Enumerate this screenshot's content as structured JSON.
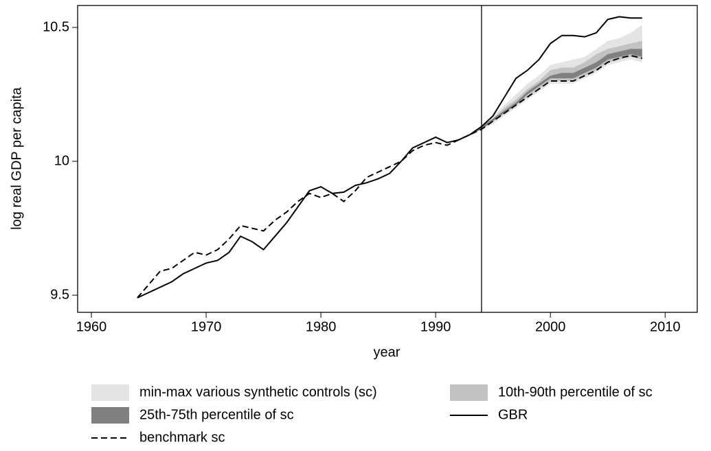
{
  "chart_data": {
    "type": "line",
    "x_label": "year",
    "y_label": "log real GDP per capita",
    "xlim": [
      1958.8,
      2012.8
    ],
    "xticks": [
      1960,
      1970,
      1980,
      1990,
      2000,
      2010
    ],
    "ylim": [
      9.436,
      10.582
    ],
    "yticks": [
      9.5,
      10,
      10.5
    ],
    "vline": 1994,
    "x": [
      1964,
      1965,
      1966,
      1967,
      1968,
      1969,
      1970,
      1971,
      1972,
      1973,
      1974,
      1975,
      1976,
      1977,
      1978,
      1979,
      1980,
      1981,
      1982,
      1983,
      1984,
      1985,
      1986,
      1987,
      1988,
      1989,
      1990,
      1991,
      1992,
      1993,
      1994,
      1995,
      1996,
      1997,
      1998,
      1999,
      2000,
      2001,
      2002,
      2003,
      2004,
      2005,
      2006,
      2007,
      2008
    ],
    "bands": [
      {
        "name": "min-max various synthetic controls (sc)",
        "color": "#e4e4e4",
        "x": [
          1993,
          1994,
          1995,
          1996,
          1997,
          1998,
          1999,
          2000,
          2001,
          2002,
          2003,
          2004,
          2005,
          2006,
          2007,
          2008
        ],
        "lower": [
          10.1,
          10.12,
          10.14,
          10.17,
          10.2,
          10.23,
          10.26,
          10.29,
          10.29,
          10.29,
          10.31,
          10.33,
          10.36,
          10.37,
          10.38,
          10.37
        ],
        "upper": [
          10.1,
          10.13,
          10.17,
          10.21,
          10.25,
          10.29,
          10.32,
          10.36,
          10.37,
          10.38,
          10.39,
          10.42,
          10.45,
          10.46,
          10.48,
          10.51
        ]
      },
      {
        "name": "10th-90th percentile of sc",
        "color": "#c2c2c2",
        "x": [
          1993,
          1994,
          1995,
          1996,
          1997,
          1998,
          1999,
          2000,
          2001,
          2002,
          2003,
          2004,
          2005,
          2006,
          2007,
          2008
        ],
        "lower": [
          10.1,
          10.12,
          10.15,
          10.18,
          10.21,
          10.24,
          10.27,
          10.3,
          10.3,
          10.3,
          10.32,
          10.34,
          10.37,
          10.38,
          10.39,
          10.38
        ],
        "upper": [
          10.1,
          10.13,
          10.16,
          10.2,
          10.23,
          10.27,
          10.3,
          10.34,
          10.35,
          10.35,
          10.37,
          10.4,
          10.42,
          10.43,
          10.44,
          10.45
        ]
      },
      {
        "name": "25th-75th percentile of sc",
        "color": "#808080",
        "x": [
          1993,
          1994,
          1995,
          1996,
          1997,
          1998,
          1999,
          2000,
          2001,
          2002,
          2003,
          2004,
          2005,
          2006,
          2007,
          2008
        ],
        "lower": [
          10.1,
          10.12,
          10.15,
          10.18,
          10.21,
          10.25,
          10.28,
          10.31,
          10.31,
          10.31,
          10.33,
          10.35,
          10.38,
          10.39,
          10.4,
          10.39
        ],
        "upper": [
          10.1,
          10.13,
          10.16,
          10.19,
          10.22,
          10.26,
          10.29,
          10.32,
          10.33,
          10.33,
          10.35,
          10.37,
          10.4,
          10.41,
          10.42,
          10.42
        ]
      }
    ],
    "series": [
      {
        "name": "GBR",
        "color": "#000000",
        "dashed": false,
        "values": [
          9.49,
          9.51,
          9.53,
          9.55,
          9.58,
          9.6,
          9.62,
          9.63,
          9.66,
          9.72,
          9.7,
          9.67,
          9.72,
          9.77,
          9.83,
          9.89,
          9.905,
          9.88,
          9.885,
          9.91,
          9.92,
          9.935,
          9.955,
          10.0,
          10.05,
          10.07,
          10.09,
          10.07,
          10.08,
          10.1,
          10.13,
          10.17,
          10.24,
          10.31,
          10.34,
          10.38,
          10.44,
          10.47,
          10.47,
          10.465,
          10.48,
          10.53,
          10.54,
          10.535,
          10.535
        ]
      },
      {
        "name": "benchmark sc",
        "color": "#000000",
        "dashed": true,
        "values": [
          9.49,
          9.54,
          9.59,
          9.6,
          9.63,
          9.66,
          9.65,
          9.67,
          9.71,
          9.76,
          9.75,
          9.74,
          9.78,
          9.81,
          9.85,
          9.88,
          9.865,
          9.88,
          9.85,
          9.89,
          9.94,
          9.96,
          9.98,
          10.0,
          10.04,
          10.06,
          10.07,
          10.06,
          10.08,
          10.1,
          10.12,
          10.15,
          10.18,
          10.21,
          10.24,
          10.27,
          10.3,
          10.3,
          10.3,
          10.32,
          10.34,
          10.37,
          10.385,
          10.395,
          10.385
        ]
      }
    ]
  }
}
